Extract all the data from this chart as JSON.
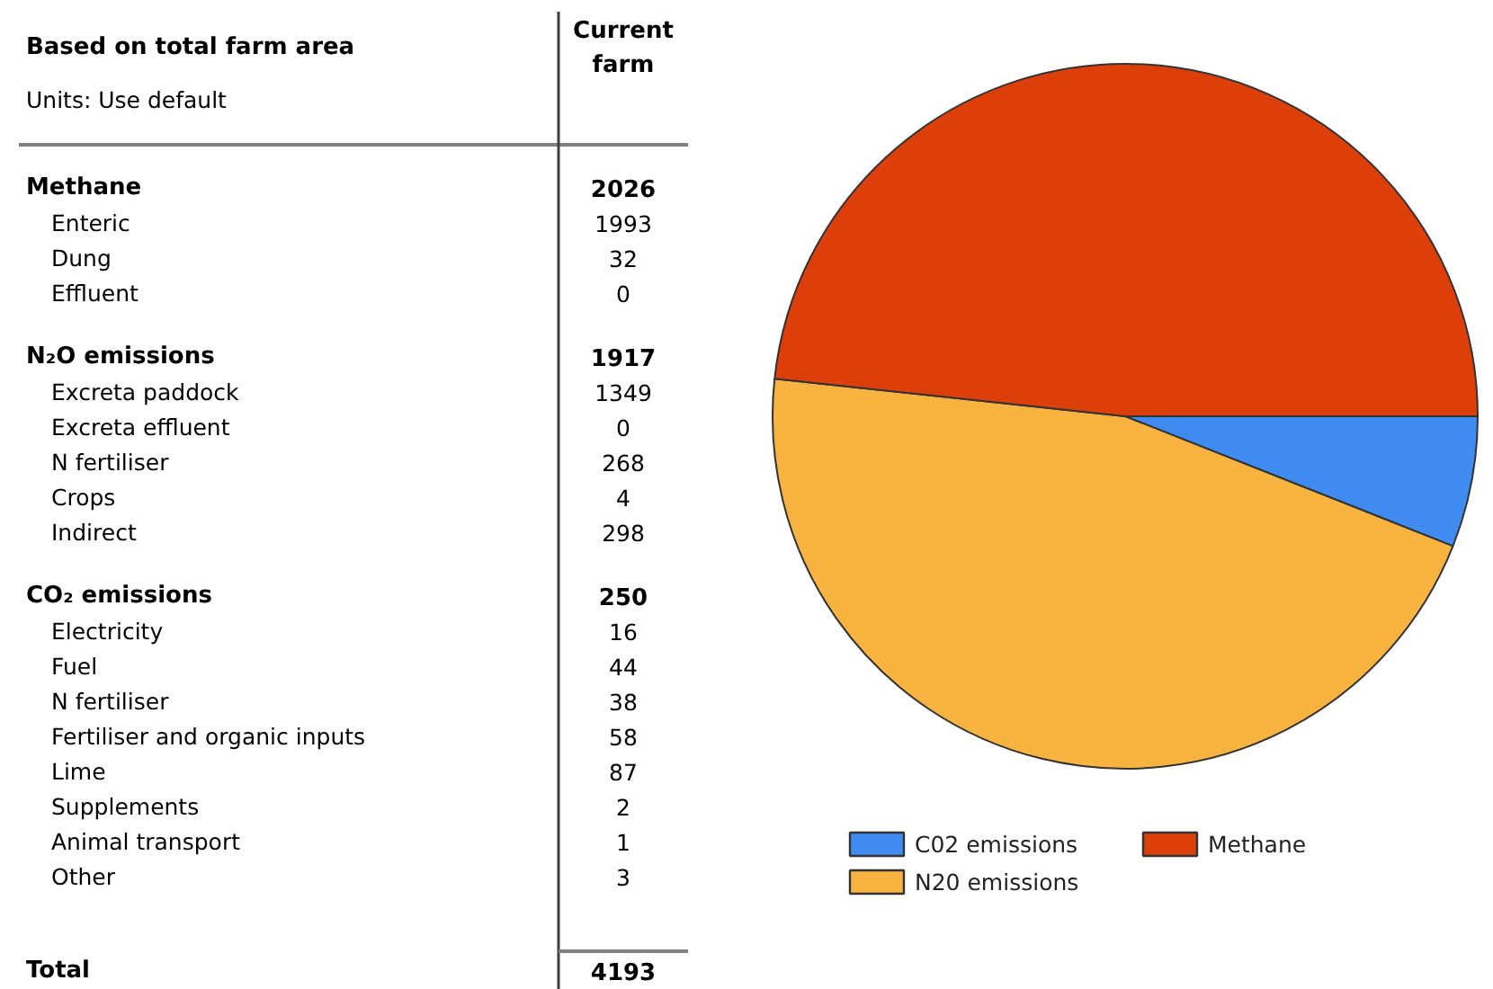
{
  "chart_data": [
    {
      "type": "other",
      "title": "Based on total farm area",
      "subtitle": "Units: Use default",
      "data_labels": true,
      "categories": [
        "Methane",
        "Enteric",
        "Dung",
        "Effluent",
        "N₂O emissions",
        "Excreta paddock",
        "Excreta effluent",
        "N fertiliser",
        "Crops",
        "Indirect",
        "CO₂ emissions",
        "Electricity",
        "Fuel",
        "N fertiliser",
        "Fertiliser and organic inputs",
        "Lime",
        "Supplements",
        "Animal transport",
        "Other",
        "Total"
      ],
      "series": [
        {
          "name": "Current farm",
          "values": [
            2026,
            null,
            null,
            null,
            1917,
            null,
            null,
            null,
            null,
            null,
            250,
            null,
            null,
            null,
            null,
            null,
            null,
            null,
            null,
            4193
          ]
        },
        {
          "values": [
            null,
            1993,
            32,
            0,
            null,
            1349,
            0,
            268,
            4,
            298,
            null,
            16,
            44,
            38,
            58,
            87,
            2,
            1,
            3,
            null
          ]
        }
      ]
    },
    {
      "type": "pie",
      "categories": [
        "C02 emissions",
        "N20 emissions",
        "Methane"
      ],
      "values": [
        6.0,
        45.7,
        48.3
      ],
      "colors": [
        "#3f8bf0",
        "#f9b340",
        "#dd3f0a"
      ],
      "legend": "bottom"
    }
  ]
}
